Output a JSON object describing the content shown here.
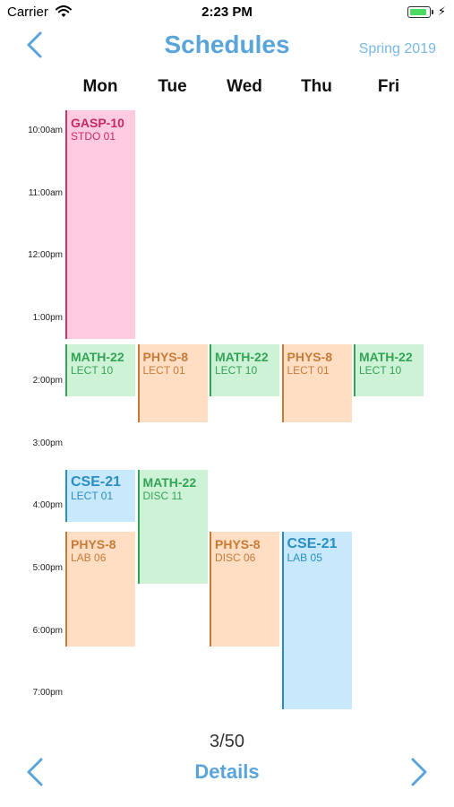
{
  "status_bar": {
    "carrier": "Carrier",
    "time": "2:23 PM",
    "battery_level": 0.9
  },
  "header": {
    "title": "Schedules",
    "term": "Spring 2019"
  },
  "days": [
    "Mon",
    "Tue",
    "Wed",
    "Thu",
    "Fri"
  ],
  "time_labels": [
    "10:00am",
    "11:00am",
    "12:00pm",
    "1:00pm",
    "2:00pm",
    "3:00pm",
    "4:00pm",
    "5:00pm",
    "6:00pm",
    "7:00pm"
  ],
  "courses": [
    {
      "code": "GASP-10",
      "section": "STDO 01",
      "day": "Mon",
      "start": "09:40",
      "end": "13:20",
      "color": "pink"
    },
    {
      "code": "MATH-22",
      "section": "LECT 10",
      "day": "Mon",
      "start": "13:25",
      "end": "14:15",
      "color": "green"
    },
    {
      "code": "PHYS-8",
      "section": "LECT 01",
      "day": "Tue",
      "start": "13:25",
      "end": "14:40",
      "color": "orange"
    },
    {
      "code": "MATH-22",
      "section": "LECT 10",
      "day": "Wed",
      "start": "13:25",
      "end": "14:15",
      "color": "green"
    },
    {
      "code": "PHYS-8",
      "section": "LECT 01",
      "day": "Thu",
      "start": "13:25",
      "end": "14:40",
      "color": "orange"
    },
    {
      "code": "MATH-22",
      "section": "LECT 10",
      "day": "Fri",
      "start": "13:25",
      "end": "14:15",
      "color": "green"
    },
    {
      "code": "CSE-21",
      "section": "LECT 01",
      "day": "Mon",
      "start": "15:25",
      "end": "16:15",
      "color": "blue"
    },
    {
      "code": "MATH-22",
      "section": "DISC 11",
      "day": "Tue",
      "start": "15:25",
      "end": "17:15",
      "color": "green"
    },
    {
      "code": "PHYS-8",
      "section": "LAB 06",
      "day": "Mon",
      "start": "16:25",
      "end": "18:15",
      "color": "orange"
    },
    {
      "code": "PHYS-8",
      "section": "DISC 06",
      "day": "Wed",
      "start": "16:25",
      "end": "18:15",
      "color": "orange"
    },
    {
      "code": "CSE-21",
      "section": "LAB 05",
      "day": "Thu",
      "start": "16:25",
      "end": "19:15",
      "color": "blue"
    }
  ],
  "footer": {
    "counter": "3/50",
    "details_label": "Details"
  },
  "icons": {
    "back": "chevron-left-icon",
    "prev": "chevron-left-icon",
    "next": "chevron-right-icon",
    "wifi": "wifi-icon",
    "battery": "battery-icon"
  },
  "colors": {
    "accent": "#5aa4dc",
    "pink": "#ffcbe0",
    "green": "#cdf2d6",
    "orange": "#ffdec4",
    "blue": "#c8e9fb"
  }
}
